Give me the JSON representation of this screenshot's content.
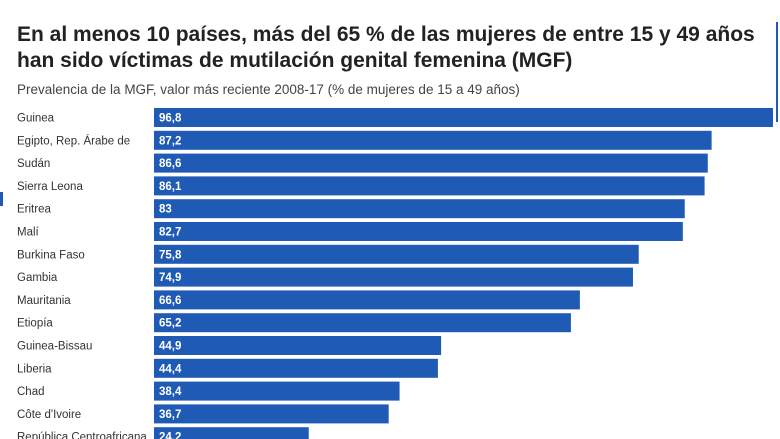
{
  "chart_data": {
    "type": "bar",
    "orientation": "horizontal",
    "title": "En al menos 10 países, más del 65 % de las mujeres de entre 15 y 49 años han sido víctimas de mutilación genital femenina (MGF)",
    "subtitle": "Prevalencia de la MGF, valor más reciente 2008-17 (% de mujeres de 15 a 49 años)",
    "categories": [
      "Guinea",
      "Egipto, Rep. Árabe de",
      "Sudán",
      "Sierra Leona",
      "Eritrea",
      "Malí",
      "Burkina Faso",
      "Gambia",
      "Mauritania",
      "Etiopía",
      "Guinea-Bissau",
      "Liberia",
      "Chad",
      "Côte d'Ivoire",
      "República Centroafricana"
    ],
    "values": [
      96.8,
      87.2,
      86.6,
      86.1,
      83,
      82.7,
      75.8,
      74.9,
      66.6,
      65.2,
      44.9,
      44.4,
      38.4,
      36.7,
      24.2
    ],
    "value_labels": [
      "96,8",
      "87,2",
      "86,6",
      "86,1",
      "83",
      "82,7",
      "75,8",
      "74,9",
      "66,6",
      "65,2",
      "44,9",
      "44,4",
      "38,4",
      "36,7",
      "24,2"
    ],
    "xlim": [
      0,
      96.8
    ],
    "bar_color": "#1f5bb5",
    "grid": false,
    "legend": "none"
  }
}
